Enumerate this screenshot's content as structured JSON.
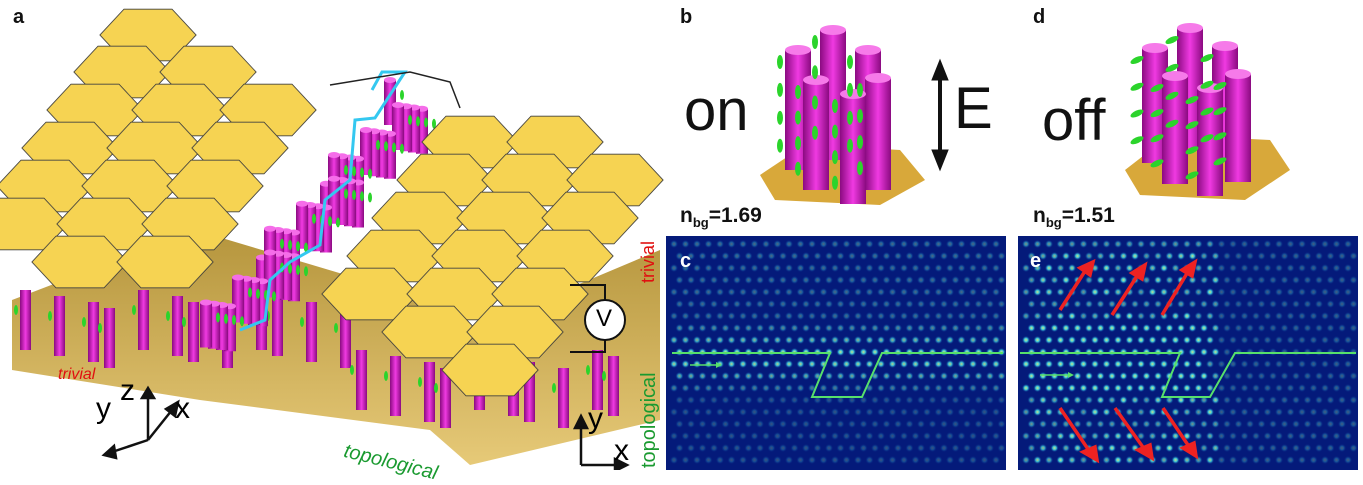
{
  "panels": {
    "a": "a",
    "b": "b",
    "c": "c",
    "d": "d",
    "e": "e"
  },
  "panel_a": {
    "trivial_label": "trivial",
    "topological_label": "topological",
    "axis_y": "y",
    "axis_z": "z",
    "axis_x": "x",
    "voltmeter": "V"
  },
  "panel_b": {
    "state": "on",
    "field": "E",
    "n_bg_main": "n",
    "n_bg_sub": "bg",
    "n_bg_value": "=1.69"
  },
  "panel_d": {
    "state": "off",
    "n_bg_main": "n",
    "n_bg_sub": "bg",
    "n_bg_value": "=1.51"
  },
  "field_maps": {
    "side_trivial": "trivial",
    "side_topological": "topological",
    "axis_y": "y",
    "axis_x": "x"
  },
  "colors": {
    "gold": "#e8c23a",
    "magenta": "#d417c8",
    "cyan": "#34c8f0",
    "green": "#2bd42b",
    "map_bg": "#041a7a",
    "red": "#e62020"
  }
}
